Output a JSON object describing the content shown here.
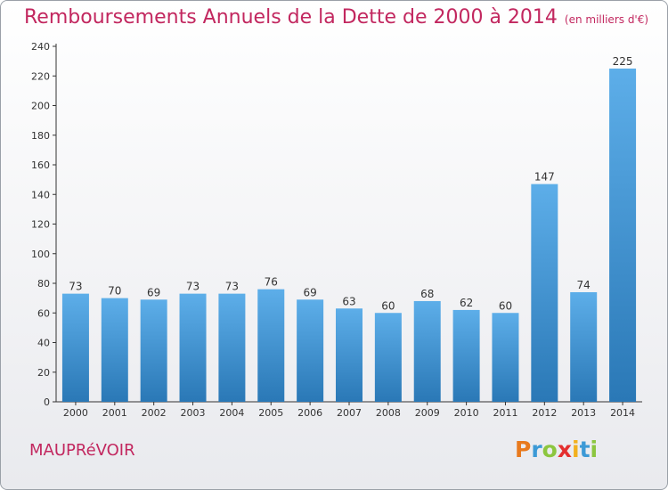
{
  "chart_data": {
    "type": "bar",
    "title": "Remboursements Annuels de la Dette de 2000 à 2014",
    "subtitle": "(en milliers d'€)",
    "categories": [
      "2000",
      "2001",
      "2002",
      "2003",
      "2004",
      "2005",
      "2006",
      "2007",
      "2008",
      "2009",
      "2010",
      "2011",
      "2012",
      "2013",
      "2014"
    ],
    "values": [
      73,
      70,
      69,
      73,
      73,
      76,
      69,
      63,
      60,
      68,
      62,
      60,
      147,
      74,
      225
    ],
    "ylim": [
      0,
      240
    ],
    "yticks": [
      0,
      20,
      40,
      60,
      80,
      100,
      120,
      140,
      160,
      180,
      200,
      220,
      240
    ],
    "xlabel": "",
    "ylabel": "",
    "grid": false,
    "bar_color_top": "#5daee9",
    "bar_color_bottom": "#2a78b6"
  },
  "footer": {
    "commune": "MAUPRéVOIR",
    "brand": [
      "P",
      "r",
      "o",
      "x",
      "i",
      "t",
      "i"
    ],
    "brand_colors": [
      "#e87a1e",
      "#3c9ad6",
      "#8cc63f",
      "#e42f2f",
      "#f2b01e",
      "#3c9ad6",
      "#8cc63f"
    ]
  },
  "colors": {
    "title": "#c2275f",
    "axis": "#333333"
  }
}
